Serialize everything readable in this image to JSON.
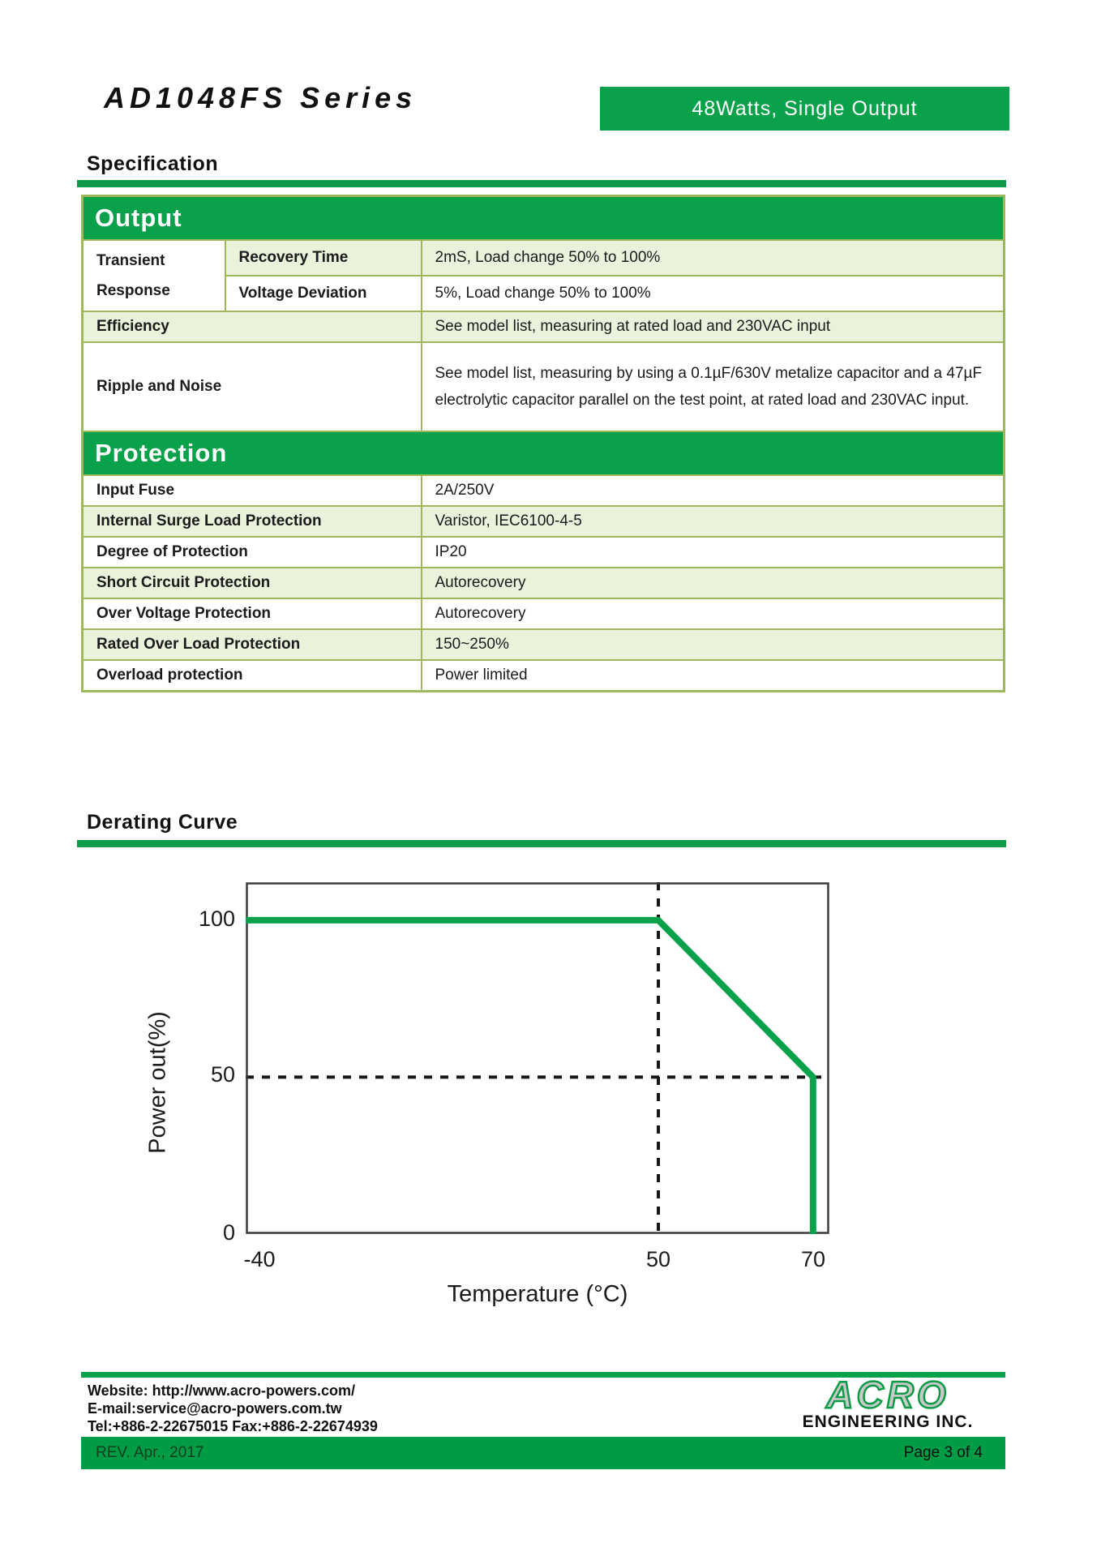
{
  "header": {
    "title": "AD1048FS Series",
    "badge": "48Watts, Single Output"
  },
  "sections": {
    "specification": "Specification",
    "derating": "Derating Curve"
  },
  "spec_table": {
    "output_band": "Output",
    "protection_band": "Protection",
    "transient_line1": "Transient",
    "transient_line2": "Response",
    "rows_output": [
      {
        "label": "Recovery Time",
        "value": "2mS, Load change 50% to 100%"
      },
      {
        "label": "Voltage Deviation",
        "value": "5%, Load change 50% to 100%"
      }
    ],
    "efficiency": {
      "label": "Efficiency",
      "value": "See model list, measuring at rated load and 230VAC input"
    },
    "ripple": {
      "label": "Ripple and Noise",
      "value": "See model list, measuring by using a 0.1µF/630V metalize capacitor and a 47µF electrolytic capacitor parallel on the test point, at rated load and 230VAC input."
    },
    "rows_protection": [
      {
        "label": "Input Fuse",
        "value": "2A/250V"
      },
      {
        "label": "Internal Surge Load Protection",
        "value": "Varistor, IEC6100-4-5"
      },
      {
        "label": "Degree of Protection",
        "value": "IP20"
      },
      {
        "label": "Short Circuit Protection",
        "value": "Autorecovery"
      },
      {
        "label": "Over Voltage Protection",
        "value": "Autorecovery"
      },
      {
        "label": "Rated Over Load Protection",
        "value": "150~250%"
      },
      {
        "label": "Overload protection",
        "value": "Power limited"
      }
    ]
  },
  "chart_data": {
    "type": "line",
    "title": "Derating Curve",
    "xlabel": "Temperature (°C)",
    "ylabel": "Power out(%)",
    "series": [
      {
        "name": "Power out",
        "points": [
          [
            -40,
            100
          ],
          [
            50,
            100
          ],
          [
            70,
            50
          ],
          [
            70,
            0
          ]
        ]
      }
    ],
    "xticks": [
      -40,
      50,
      70
    ],
    "yticks": [
      100,
      50,
      0
    ],
    "ylim": [
      0,
      115
    ],
    "xlim": [
      -40,
      75
    ],
    "guides": {
      "vline_x": 50,
      "hline_y": 50
    },
    "line_color": "#0AA14B",
    "grid": false,
    "legend_position": "none"
  },
  "footer": {
    "website": "Website: http://www.acro-powers.com/",
    "email": "E-mail:service@acro-powers.com.tw",
    "tel": "Tel:+886-2-22675015 Fax:+886-2-22674939",
    "logo_name": "ACRO",
    "logo_sub": "ENGINEERING INC.",
    "rev": "REV. Apr., 2017",
    "page": "Page 3 of 4"
  },
  "colors": {
    "accent_green": "#0AA14B",
    "bar_green": "#009B45",
    "table_border_olive": "#9CB85A",
    "row_alt_green": "#EAF2DC"
  }
}
